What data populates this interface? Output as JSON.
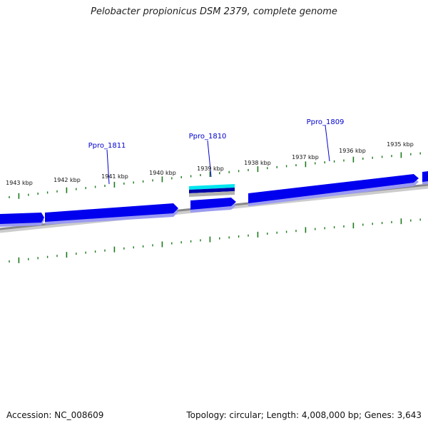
{
  "header": {
    "title": "Pelobacter propionicus DSM 2379, complete genome"
  },
  "map": {
    "ticks": [
      {
        "label": "1943 kbp"
      },
      {
        "label": "1942 kbp"
      },
      {
        "label": "1941 kbp"
      },
      {
        "label": "1940 kbp"
      },
      {
        "label": "1939 kbp"
      },
      {
        "label": "1938 kbp"
      },
      {
        "label": "1937 kbp"
      },
      {
        "label": "1936 kbp"
      },
      {
        "label": "1935 kbp"
      }
    ],
    "gene_labels": [
      {
        "label": "Ppro_1811"
      },
      {
        "label": "Ppro_1810"
      },
      {
        "label": "Ppro_1809"
      }
    ],
    "colors": {
      "gene": "#0000ee",
      "gene_shadow": "#8f8ff0",
      "highlight": "#00e5ee",
      "backbone": "#888888",
      "ticks": "#1a7a1a",
      "gene_label": "#0000cc"
    }
  },
  "footer": {
    "accession": "Accession: NC_008609",
    "summary": "Topology: circular; Length: 4,008,000 bp; Genes: 3,643"
  }
}
